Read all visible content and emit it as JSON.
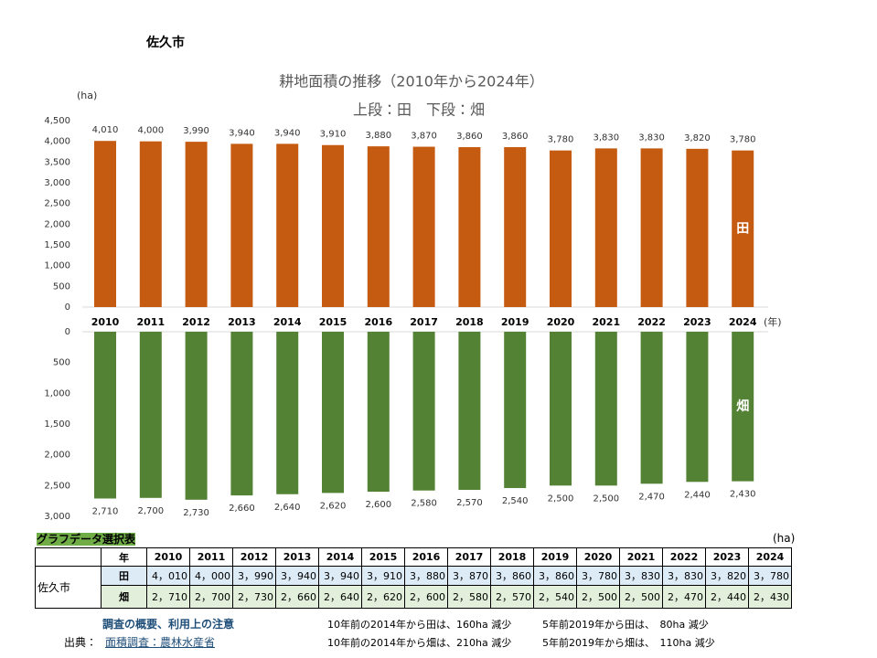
{
  "header": {
    "city": "佐久市"
  },
  "chart_data": [
    {
      "type": "bar",
      "title": "耕地面積の推移（2010年から2024年）",
      "subtitle": "上段：田　下段：畑",
      "y_unit": "(ha)",
      "x_unit": "(年)",
      "annotation": "田",
      "color": "#c55a11",
      "categories": [
        "2010",
        "2011",
        "2012",
        "2013",
        "2014",
        "2015",
        "2016",
        "2017",
        "2018",
        "2019",
        "2020",
        "2021",
        "2022",
        "2023",
        "2024"
      ],
      "values": [
        4010,
        4000,
        3990,
        3940,
        3940,
        3910,
        3880,
        3870,
        3860,
        3860,
        3780,
        3830,
        3830,
        3820,
        3780
      ],
      "value_labels": [
        "4,010",
        "4,000",
        "3,990",
        "3,940",
        "3,940",
        "3,910",
        "3,880",
        "3,870",
        "3,860",
        "3,860",
        "3,780",
        "3,830",
        "3,830",
        "3,820",
        "3,780"
      ],
      "ylim": [
        0,
        4500
      ],
      "yticks": [
        0,
        500,
        {
          "value": 1000,
          "label": "1,000"
        },
        {
          "value": 1500,
          "label": "1,500"
        },
        {
          "value": 2000,
          "label": "2,000"
        },
        {
          "value": 2500,
          "label": "2,500"
        },
        {
          "value": 3000,
          "label": "3,000"
        },
        {
          "value": 3500,
          "label": "3,500"
        },
        {
          "value": 4000,
          "label": "4,000"
        },
        {
          "value": 4500,
          "label": "4,500"
        }
      ],
      "y_inverted": false
    },
    {
      "type": "bar",
      "annotation": "畑",
      "color": "#548235",
      "values": [
        2710,
        2700,
        2730,
        2660,
        2640,
        2620,
        2600,
        2580,
        2570,
        2540,
        2500,
        2500,
        2470,
        2440,
        2430
      ],
      "value_labels": [
        "2,710",
        "2,700",
        "2,730",
        "2,660",
        "2,640",
        "2,620",
        "2,600",
        "2,580",
        "2,570",
        "2,540",
        "2,500",
        "2,500",
        "2,470",
        "2,440",
        "2,430"
      ],
      "ylim": [
        0,
        3000
      ],
      "yticks": [
        0,
        500,
        {
          "value": 1000,
          "label": "1,000"
        },
        {
          "value": 1500,
          "label": "1,500"
        },
        {
          "value": 2000,
          "label": "2,000"
        },
        {
          "value": 2500,
          "label": "2,500"
        },
        {
          "value": 3000,
          "label": "3,000"
        }
      ],
      "y_inverted": true
    }
  ],
  "table": {
    "title": "グラフデータ選択表",
    "unit": "(ha)",
    "region": "佐久市",
    "columns": [
      "年",
      "2010",
      "2011",
      "2012",
      "2013",
      "2014",
      "2015",
      "2016",
      "2017",
      "2018",
      "2019",
      "2020",
      "2021",
      "2022",
      "2023",
      "2024"
    ],
    "rows": [
      [
        "田",
        "4，010",
        "4，000",
        "3，990",
        "3，940",
        "3，940",
        "3，910",
        "3，880",
        "3，870",
        "3，860",
        "3，860",
        "3，780",
        "3，830",
        "3，830",
        "3，820",
        "3，780"
      ],
      [
        "畑",
        "2，710",
        "2，700",
        "2，730",
        "2，660",
        "2，640",
        "2，620",
        "2，600",
        "2，580",
        "2，570",
        "2，540",
        "2，500",
        "2，500",
        "2，470",
        "2，440",
        "2，430"
      ]
    ]
  },
  "notes": {
    "overview_link": "調査の概要、利用上の注意",
    "source_label": "出典：",
    "source_link": "面積調査：農林水産省",
    "changes": [
      "10年前の2014年から田は、160ha 減少",
      "5年前2019年から田は、　80ha 減少",
      "10年前の2014年から畑は、210ha 減少",
      "5年前2019年から畑は、　110ha 減少"
    ]
  }
}
